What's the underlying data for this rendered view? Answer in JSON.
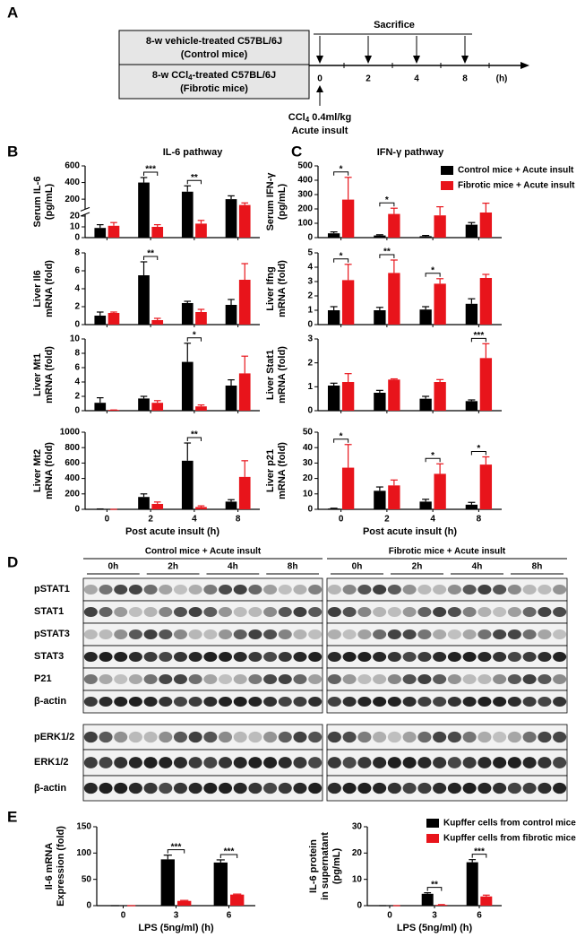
{
  "panel_letters": [
    "A",
    "B",
    "C",
    "D",
    "E"
  ],
  "panel_a": {
    "sacrifice": "Sacrifice",
    "group1": {
      "line1": "8-w vehicle-treated C57BL/6J",
      "line2": "(Control mice)"
    },
    "group2": {
      "line1": {
        "pre": "8-w CCl",
        "sub": "4",
        "post": "-treated C57BL/6J"
      },
      "line2": "(Fibrotic mice)"
    },
    "timepoints": [
      "0",
      "2",
      "4",
      "8"
    ],
    "unit": "(h)",
    "insult_dose": {
      "pre": "CCl",
      "sub": "4",
      "post": " 0.4ml/kg"
    },
    "insult_label": "Acute insult"
  },
  "panel_titles": {
    "b": "IL-6 pathway",
    "c": "IFN-γ pathway"
  },
  "legend_bc": [
    {
      "name": "Control mice  + Acute insult",
      "color": "#000000"
    },
    {
      "name": "Fibrotic mice + Acute insult",
      "color": "#e8141b"
    }
  ],
  "legend_e": [
    {
      "name": "Kupffer cells from control mice",
      "color": "#000000"
    },
    {
      "name": "Kupffer cells from fibrotic mice",
      "color": "#e8141b"
    }
  ],
  "chart_data": [
    {
      "type": "bar",
      "ylabel": [
        "Serum IL-6",
        "(pg/mL)"
      ],
      "categories": [
        null,
        null,
        null,
        null
      ],
      "ylim": [
        0,
        600
      ],
      "ybreak": [
        20,
        100
      ],
      "yticks": [
        0,
        10,
        20,
        200,
        400,
        600
      ],
      "series": [
        {
          "color": "#000000",
          "values": [
            9,
            400,
            290,
            200
          ],
          "errors": [
            3,
            60,
            70,
            40
          ]
        },
        {
          "color": "#e8141b",
          "values": [
            11,
            10,
            13,
            130
          ],
          "errors": [
            3,
            2,
            3,
            25
          ]
        }
      ],
      "significance": [
        {
          "at": 1,
          "label": "***"
        },
        {
          "at": 2,
          "label": "**"
        }
      ]
    },
    {
      "type": "bar",
      "ylabel": [
        "Liver Il6",
        "mRNA (fold)"
      ],
      "categories": [
        null,
        null,
        null,
        null
      ],
      "ylim": [
        0,
        8
      ],
      "yticks": [
        0,
        2,
        4,
        6,
        8
      ],
      "series": [
        {
          "color": "#000000",
          "values": [
            1.0,
            5.5,
            2.4,
            2.2
          ],
          "errors": [
            0.4,
            1.5,
            0.2,
            0.6
          ]
        },
        {
          "color": "#e8141b",
          "values": [
            1.3,
            0.5,
            1.4,
            5.0
          ],
          "errors": [
            0.1,
            0.2,
            0.3,
            1.8
          ]
        }
      ],
      "significance": [
        {
          "at": 1,
          "label": "**"
        }
      ]
    },
    {
      "type": "bar",
      "ylabel": [
        "Liver Mt1",
        "mRNA (fold)"
      ],
      "categories": [
        null,
        null,
        null,
        null
      ],
      "ylim": [
        0,
        10
      ],
      "yticks": [
        0,
        2,
        4,
        6,
        8,
        10
      ],
      "series": [
        {
          "color": "#000000",
          "values": [
            1.1,
            1.7,
            6.8,
            3.5
          ],
          "errors": [
            0.7,
            0.3,
            2.6,
            0.8
          ]
        },
        {
          "color": "#e8141b",
          "values": [
            0.1,
            1.1,
            0.6,
            5.2
          ],
          "errors": [
            0,
            0.3,
            0.2,
            2.4
          ]
        }
      ],
      "significance": [
        {
          "at": 2,
          "label": "*"
        }
      ]
    },
    {
      "type": "bar",
      "ylabel": [
        "Liver Mt2",
        "mRNA (fold)"
      ],
      "categories": [
        "0",
        "2",
        "4",
        "8"
      ],
      "xlabel": "Post acute insult (h)",
      "ylim": [
        0,
        1000
      ],
      "yticks": [
        0,
        200,
        400,
        600,
        800,
        1000
      ],
      "series": [
        {
          "color": "#000000",
          "values": [
            5,
            160,
            630,
            100
          ],
          "errors": [
            0,
            40,
            230,
            25
          ]
        },
        {
          "color": "#e8141b",
          "values": [
            0,
            70,
            30,
            420
          ],
          "errors": [
            0,
            25,
            15,
            210
          ]
        }
      ],
      "significance": [
        {
          "at": 2,
          "label": "**"
        }
      ]
    },
    {
      "type": "bar",
      "ylabel": [
        "Serum IFN-γ",
        "(pg/mL)"
      ],
      "categories": [
        null,
        null,
        null,
        null
      ],
      "ylim": [
        0,
        500
      ],
      "yticks": [
        0,
        100,
        200,
        300,
        400,
        500
      ],
      "series": [
        {
          "color": "#000000",
          "values": [
            30,
            15,
            10,
            90
          ],
          "errors": [
            10,
            5,
            5,
            15
          ]
        },
        {
          "color": "#e8141b",
          "values": [
            265,
            165,
            155,
            175
          ],
          "errors": [
            155,
            40,
            60,
            65
          ]
        }
      ],
      "significance": [
        {
          "at": 0,
          "label": "*"
        },
        {
          "at": 1,
          "label": "*"
        }
      ]
    },
    {
      "type": "bar",
      "ylabel": [
        "Liver Ifng",
        "mRNA (fold)"
      ],
      "categories": [
        null,
        null,
        null,
        null
      ],
      "ylim": [
        0,
        5
      ],
      "yticks": [
        0,
        1,
        2,
        3,
        4,
        5
      ],
      "series": [
        {
          "color": "#000000",
          "values": [
            1.0,
            1.0,
            1.05,
            1.45
          ],
          "errors": [
            0.25,
            0.2,
            0.2,
            0.35
          ]
        },
        {
          "color": "#e8141b",
          "values": [
            3.1,
            3.6,
            2.85,
            3.25
          ],
          "errors": [
            1.1,
            0.9,
            0.35,
            0.25
          ]
        }
      ],
      "significance": [
        {
          "at": 0,
          "label": "*"
        },
        {
          "at": 1,
          "label": "**"
        },
        {
          "at": 2,
          "label": "*"
        }
      ]
    },
    {
      "type": "bar",
      "ylabel": [
        "Liver Stat1",
        "mRNA (fold)"
      ],
      "categories": [
        null,
        null,
        null,
        null
      ],
      "ylim": [
        0,
        3
      ],
      "yticks": [
        0,
        1,
        2,
        3
      ],
      "series": [
        {
          "color": "#000000",
          "values": [
            1.05,
            0.75,
            0.5,
            0.4
          ],
          "errors": [
            0.1,
            0.1,
            0.1,
            0.05
          ]
        },
        {
          "color": "#e8141b",
          "values": [
            1.2,
            1.3,
            1.2,
            2.2
          ],
          "errors": [
            0.35,
            0.03,
            0.1,
            0.6
          ]
        }
      ],
      "significance": [
        {
          "at": 3,
          "label": "***"
        }
      ]
    },
    {
      "type": "bar",
      "ylabel": [
        "Liver p21",
        "mRNA (fold)"
      ],
      "categories": [
        "0",
        "2",
        "4",
        "8"
      ],
      "xlabel": "Post acute insult (h)",
      "ylim": [
        0,
        50
      ],
      "yticks": [
        0,
        10,
        20,
        30,
        40,
        50
      ],
      "series": [
        {
          "color": "#000000",
          "values": [
            0.5,
            12,
            5,
            3
          ],
          "errors": [
            0.2,
            2.5,
            1.5,
            1.5
          ]
        },
        {
          "color": "#e8141b",
          "values": [
            27,
            15.5,
            23,
            29
          ],
          "errors": [
            15,
            3.5,
            6.5,
            5
          ]
        }
      ],
      "significance": [
        {
          "at": 0,
          "label": "*"
        },
        {
          "at": 2,
          "label": "*"
        },
        {
          "at": 3,
          "label": "*"
        }
      ]
    },
    {
      "type": "bar",
      "ylabel": [
        "Il-6 mRNA",
        "Expression (fold)"
      ],
      "categories": [
        "0",
        "3",
        "6"
      ],
      "xlabel": "LPS (5ng/ml) (h)",
      "ylim": [
        0,
        150
      ],
      "yticks": [
        0,
        50,
        100,
        150
      ],
      "series": [
        {
          "color": "#000000",
          "values": [
            0,
            88,
            82
          ],
          "errors": [
            0,
            8,
            5
          ]
        },
        {
          "color": "#e8141b",
          "values": [
            0,
            9,
            21
          ],
          "errors": [
            0,
            1,
            1
          ]
        }
      ],
      "significance": [
        {
          "at": 1,
          "label": "***"
        },
        {
          "at": 2,
          "label": "***"
        }
      ]
    },
    {
      "type": "bar",
      "ylabel": [
        "IL-6 protein",
        "in supernatant",
        "(pg/mL)"
      ],
      "categories": [
        "0",
        "3",
        "6"
      ],
      "xlabel": "LPS (5ng/ml) (h)",
      "ylim": [
        0,
        30
      ],
      "yticks": [
        0,
        10,
        20,
        30
      ],
      "series": [
        {
          "color": "#000000",
          "values": [
            0,
            4.5,
            16.5
          ],
          "errors": [
            0,
            0.4,
            1
          ]
        },
        {
          "color": "#e8141b",
          "values": [
            0,
            0.3,
            3.5
          ],
          "errors": [
            0,
            0.1,
            0.5
          ]
        }
      ],
      "significance": [
        {
          "at": 1,
          "label": "**"
        },
        {
          "at": 2,
          "label": "***"
        }
      ]
    }
  ],
  "panel_d": {
    "group1": {
      "title": "Control mice  + Acute insult",
      "times": [
        "0h",
        "2h",
        "4h",
        "8h"
      ]
    },
    "group2": {
      "title": "Fibrotic mice + Acute insult",
      "times": [
        "0h",
        "2h",
        "4h",
        "8h"
      ]
    },
    "rows_top": [
      "pSTAT1",
      "STAT1",
      "pSTAT3",
      "STAT3",
      "P21",
      "β-actin"
    ],
    "rows_bottom": [
      "pERK1/2",
      "ERK1/2",
      "β-actin"
    ]
  }
}
